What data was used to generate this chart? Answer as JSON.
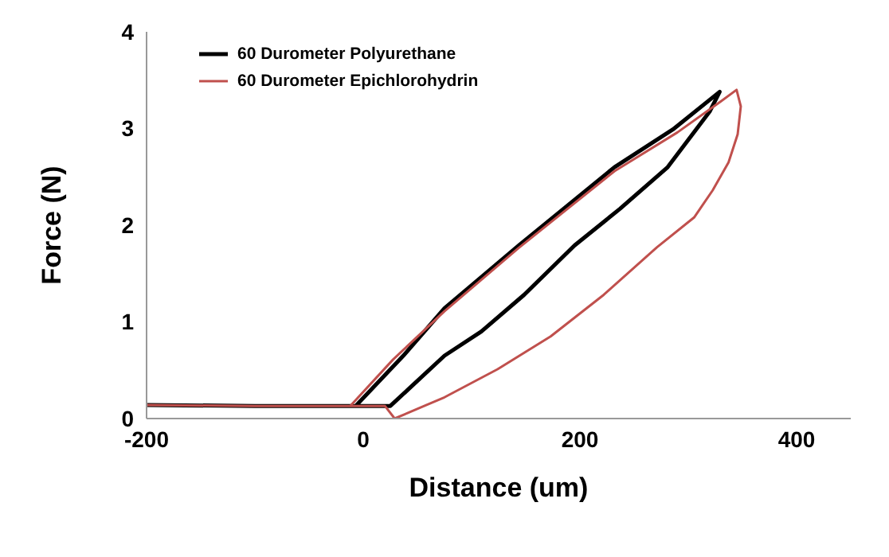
{
  "chart_data": {
    "type": "line",
    "xlabel": "Distance (um)",
    "ylabel": "Force (N)",
    "xlim": [
      -200,
      450
    ],
    "xticks": [
      -200,
      0,
      200,
      400
    ],
    "ylim": [
      0,
      4
    ],
    "yticks": [
      0,
      1,
      2,
      3,
      4
    ],
    "grid": false,
    "legend": "top left",
    "marker": "none",
    "line_style": "solid",
    "series": [
      {
        "name": "60 Durometer Polyurethane",
        "color": "#000000",
        "x": [
          -200,
          -100,
          -7,
          37,
          75,
          143.6,
          231.9,
          285.8,
          329,
          320,
          281,
          237,
          195,
          148.5,
          109,
          75,
          25,
          -7
        ],
        "values": [
          0.14,
          0.13,
          0.13,
          0.65,
          1.14,
          1.79,
          2.6,
          2.99,
          3.38,
          3.18,
          2.6,
          2.17,
          1.79,
          1.28,
          0.9,
          0.65,
          0.13,
          0.13
        ]
      },
      {
        "name": "60 Durometer Epichlorohydrin",
        "color": "#c0504d",
        "x": [
          -200,
          -100,
          -12,
          27.5,
          75,
          143,
          232,
          290,
          330,
          344.6,
          348.5,
          345.6,
          337.2,
          322.5,
          305.4,
          271,
          222,
          173,
          124,
          75,
          29,
          20,
          -12
        ],
        "values": [
          0.14,
          0.13,
          0.13,
          0.61,
          1.11,
          1.76,
          2.56,
          2.96,
          3.28,
          3.4,
          3.23,
          2.94,
          2.65,
          2.36,
          2.08,
          1.77,
          1.28,
          0.85,
          0.51,
          0.22,
          0,
          0.13,
          0.13
        ]
      }
    ]
  }
}
